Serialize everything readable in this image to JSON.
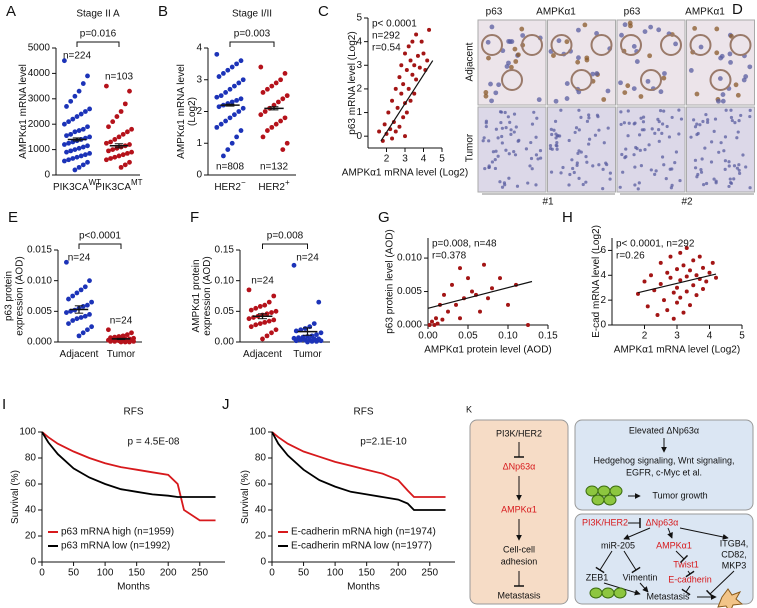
{
  "chart_data": [
    {
      "label": "A",
      "type": "dot",
      "title": "Stage II A",
      "ylabel": [
        "AMPKα1 mRNA level"
      ],
      "ylim": [
        0,
        5000
      ],
      "yticks": [
        0,
        1000,
        2000,
        3000,
        4000,
        5000
      ],
      "annotation": "p=0.016",
      "categories": [
        {
          "text": "PIK3CA",
          "sup": "WT"
        },
        {
          "text": "PIK3CA",
          "sup": "MT"
        }
      ],
      "groups": [
        {
          "n_label": "n=224",
          "color": "#1c33b8",
          "mean": 1400,
          "sem": 60,
          "values": [
            4500,
            3900,
            3600,
            3300,
            3100,
            2900,
            2700,
            2600,
            2500,
            2400,
            2300,
            2200,
            2100,
            2000,
            1900,
            1800,
            1750,
            1700,
            1600,
            1550,
            1500,
            1450,
            1400,
            1350,
            1300,
            1250,
            1200,
            1150,
            1100,
            1050,
            1000,
            950,
            900,
            850,
            800,
            750,
            700,
            650,
            600,
            550,
            500,
            400,
            300,
            200
          ]
        },
        {
          "n_label": "n=103",
          "color": "#b5121b",
          "mean": 1150,
          "sem": 80,
          "values": [
            3500,
            3300,
            2800,
            2500,
            2300,
            2100,
            1900,
            1800,
            1700,
            1600,
            1500,
            1400,
            1300,
            1250,
            1200,
            1150,
            1100,
            1050,
            1000,
            950,
            900,
            850,
            800,
            750,
            700,
            650,
            600,
            500,
            400,
            300
          ]
        }
      ]
    },
    {
      "label": "B",
      "type": "dot",
      "title": "Stage I/II",
      "ylabel": [
        "AMPKα1 mRNA level",
        "(Log2)"
      ],
      "ylim": [
        0,
        4
      ],
      "yticks": [
        0,
        1,
        2,
        3,
        4
      ],
      "annotation": "p=0.003",
      "categories": [
        {
          "text": "HER2",
          "sup": "−"
        },
        {
          "text": "HER2",
          "sup": "+"
        }
      ],
      "groups": [
        {
          "n_label": "n=808",
          "color": "#1c33b8",
          "mean": 2.2,
          "sem": 0.03,
          "values": [
            3.8,
            3.6,
            3.5,
            3.4,
            3.3,
            3.2,
            3.1,
            3.0,
            2.9,
            2.8,
            2.7,
            2.6,
            2.5,
            2.45,
            2.4,
            2.35,
            2.3,
            2.25,
            2.2,
            2.15,
            2.1,
            2.0,
            1.9,
            1.8,
            1.7,
            1.6,
            1.5,
            1.4,
            1.2,
            1.0,
            0.8,
            0.6
          ]
        },
        {
          "n_label": "n=132",
          "color": "#b5121b",
          "mean": 2.1,
          "sem": 0.05,
          "values": [
            3.4,
            3.2,
            3.0,
            2.9,
            2.8,
            2.7,
            2.6,
            2.5,
            2.4,
            2.3,
            2.2,
            2.1,
            2.0,
            1.9,
            1.8,
            1.7,
            1.6,
            1.5,
            1.4,
            1.2,
            1.0,
            0.8
          ]
        }
      ]
    },
    {
      "label": "C",
      "type": "scatter",
      "ylabel": [
        "p63 mRNA level (Log2)"
      ],
      "xlabel": "AMPKα1 mRNA level (Log2)",
      "xlim": [
        1,
        5
      ],
      "xticks": [
        2,
        3,
        4,
        5
      ],
      "ylim": [
        -0.5,
        5
      ],
      "yticks": [
        0,
        1,
        2,
        3,
        4,
        5
      ],
      "color": "#a31515",
      "annotation": [
        "p< 0.0001",
        "n=292",
        "r=0.54"
      ],
      "x": [
        1.6,
        1.8,
        1.9,
        2.0,
        2.1,
        2.2,
        2.3,
        2.3,
        2.4,
        2.5,
        2.5,
        2.6,
        2.7,
        2.7,
        2.8,
        2.8,
        2.9,
        2.9,
        3.0,
        3.0,
        3.0,
        3.1,
        3.1,
        3.2,
        3.2,
        3.3,
        3.3,
        3.4,
        3.4,
        3.5,
        3.5,
        3.6,
        3.6,
        3.7,
        3.8,
        3.9,
        4.0,
        4.1,
        4.2,
        4.3
      ],
      "y": [
        0.2,
        -0.2,
        0.5,
        0.1,
        1.0,
        0.3,
        -0.1,
        1.5,
        0.6,
        2.0,
        0.2,
        1.2,
        2.5,
        0.4,
        1.8,
        3.0,
        0.8,
        2.2,
        3.5,
        1.4,
        0.0,
        2.8,
        1.0,
        3.8,
        2.0,
        3.2,
        1.5,
        4.0,
        2.6,
        3.0,
        1.8,
        4.3,
        2.4,
        3.4,
        2.9,
        4.0,
        3.5,
        2.8,
        3.2,
        4.5
      ],
      "fit": {
        "x": [
          1.7,
          4.5
        ],
        "y": [
          -0.2,
          3.2
        ]
      }
    },
    {
      "label": "E",
      "type": "dot",
      "ylabel": [
        "p63 protein",
        "expression (AOD)"
      ],
      "ylim": [
        0,
        0.015
      ],
      "yticks": [
        {
          "value": 0,
          "label": "0.000"
        },
        {
          "value": 0.005,
          "label": "0.005"
        },
        {
          "value": 0.01,
          "label": "0.010"
        },
        {
          "value": 0.015,
          "label": "0.015"
        }
      ],
      "annotation": "p<0.0001",
      "categories": [
        {
          "text": "Adjacent"
        },
        {
          "text": "Tumor"
        }
      ],
      "groups": [
        {
          "n_label": "n=24",
          "color": "#1c33b8",
          "mean": 0.0053,
          "sem": 0.0006,
          "values": [
            0.013,
            0.01,
            0.009,
            0.0085,
            0.008,
            0.0075,
            0.007,
            0.0065,
            0.006,
            0.0058,
            0.0055,
            0.0052,
            0.005,
            0.0048,
            0.0045,
            0.0042,
            0.004,
            0.0038,
            0.0035,
            0.003,
            0.0025,
            0.002,
            0.0015,
            0.001
          ]
        },
        {
          "n_label": "n=24",
          "color": "#b5121b",
          "mean": 0.0005,
          "sem": 0.0001,
          "values": [
            0.002,
            0.0015,
            0.0012,
            0.001,
            0.0009,
            0.0008,
            0.0007,
            0.0006,
            0.0005,
            0.0005,
            0.0004,
            0.0004,
            0.0003,
            0.0003,
            0.0003,
            0.0002,
            0.0002,
            0.0002,
            0.0001,
            0.0001,
            0.0001,
            0,
            0,
            0
          ]
        }
      ]
    },
    {
      "label": "F",
      "type": "dot",
      "ylabel": [
        "AMPKα1 protein",
        "expression (AOD)"
      ],
      "ylim": [
        0,
        0.15
      ],
      "yticks": [
        {
          "value": 0,
          "label": "0.00"
        },
        {
          "value": 0.05,
          "label": "0.05"
        },
        {
          "value": 0.1,
          "label": "0.10"
        },
        {
          "value": 0.15,
          "label": "0.15"
        }
      ],
      "annotation": "p=0.008",
      "categories": [
        {
          "text": "Adjacent"
        },
        {
          "text": "Tumor"
        }
      ],
      "groups": [
        {
          "n_label": "n=24",
          "color": "#b5121b",
          "mean": 0.042,
          "sem": 0.004,
          "values": [
            0.085,
            0.075,
            0.065,
            0.06,
            0.058,
            0.055,
            0.052,
            0.05,
            0.048,
            0.046,
            0.044,
            0.042,
            0.04,
            0.038,
            0.036,
            0.034,
            0.032,
            0.03,
            0.028,
            0.025,
            0.02,
            0.015,
            0.01,
            0.005
          ]
        },
        {
          "n_label": "n=24",
          "color": "#1c33b8",
          "mean": 0.017,
          "sem": 0.006,
          "values": [
            0.125,
            0.065,
            0.03,
            0.025,
            0.022,
            0.02,
            0.018,
            0.015,
            0.012,
            0.01,
            0.009,
            0.008,
            0.007,
            0.006,
            0.005,
            0.005,
            0.004,
            0.003,
            0.003,
            0.002,
            0.002,
            0.001,
            0.001,
            0
          ]
        }
      ]
    },
    {
      "label": "G",
      "type": "scatter",
      "ylabel": [
        "p63 protein level (AOD)"
      ],
      "xlabel": "AMPKα1 protein level (AOD)",
      "xlim": [
        0,
        0.15
      ],
      "xticks": [
        {
          "value": 0,
          "label": "0.00"
        },
        {
          "value": 0.05,
          "label": "0.05"
        },
        {
          "value": 0.1,
          "label": "0.10"
        },
        {
          "value": 0.15,
          "label": "0.15"
        }
      ],
      "ylim": [
        0,
        0.013
      ],
      "yticks": [
        {
          "value": 0,
          "label": "0.000"
        },
        {
          "value": 0.005,
          "label": "0.005"
        },
        {
          "value": 0.01,
          "label": "0.010"
        }
      ],
      "color": "#a31515",
      "annotation": [
        "p=0.008, n=48",
        "r=0.378"
      ],
      "x": [
        0.002,
        0.005,
        0.008,
        0.01,
        0.012,
        0.015,
        0.018,
        0.02,
        0.025,
        0.03,
        0.035,
        0.04,
        0.04,
        0.045,
        0.05,
        0.055,
        0.06,
        0.065,
        0.07,
        0.075,
        0.08,
        0.09,
        0.1,
        0.11,
        0.125
      ],
      "y": [
        0,
        0.0005,
        0,
        0.001,
        0.0002,
        0.003,
        0.0008,
        0.0045,
        0.002,
        0.006,
        0.003,
        0.0085,
        0.001,
        0.004,
        0.007,
        0.005,
        0.0045,
        0.002,
        0.009,
        0.004,
        0.0055,
        0.007,
        0.003,
        0.006,
        0
      ],
      "fit": {
        "x": [
          0,
          0.13
        ],
        "y": [
          0.0025,
          0.0065
        ]
      }
    },
    {
      "label": "H",
      "type": "scatter",
      "ylabel": [
        "E-cad mRNA level (Log2)"
      ],
      "xlabel": "AMPKα1 mRNA level (Log2)",
      "xlim": [
        1,
        5
      ],
      "xticks": [
        2,
        3,
        4,
        5
      ],
      "ylim": [
        0,
        7
      ],
      "yticks": [
        0,
        2,
        4,
        6
      ],
      "color": "#a31515",
      "annotation": [
        "p< 0.0001, n=292",
        "r=0.26"
      ],
      "x": [
        1.8,
        2.0,
        2.1,
        2.2,
        2.3,
        2.4,
        2.5,
        2.5,
        2.6,
        2.7,
        2.7,
        2.8,
        2.8,
        2.9,
        2.9,
        3.0,
        3.0,
        3.0,
        3.1,
        3.1,
        3.1,
        3.2,
        3.2,
        3.3,
        3.3,
        3.3,
        3.4,
        3.4,
        3.5,
        3.5,
        3.6,
        3.6,
        3.7,
        3.7,
        3.8,
        3.8,
        3.9,
        4.0,
        4.1,
        4.2
      ],
      "y": [
        2.5,
        3.5,
        1.5,
        4.0,
        2.8,
        0.8,
        3.3,
        5.0,
        2.0,
        4.2,
        1.2,
        3.8,
        5.5,
        2.6,
        0.5,
        4.5,
        3.0,
        1.8,
        5.8,
        3.6,
        2.2,
        4.8,
        1.0,
        3.9,
        6.2,
        2.7,
        4.4,
        1.6,
        5.2,
        3.2,
        4.0,
        2.4,
        5.5,
        3.7,
        4.6,
        2.9,
        3.5,
        4.2,
        5.0,
        3.8
      ],
      "fit": {
        "x": [
          1.8,
          4.2
        ],
        "y": [
          2.6,
          4.1
        ]
      }
    },
    {
      "label": "I",
      "type": "line",
      "title": "RFS",
      "ylabel": [
        "Survival (%)"
      ],
      "xlabel": "Months",
      "annotation": "p = 4.5E-08",
      "xlim": [
        0,
        290
      ],
      "xticks": [
        0,
        50,
        100,
        150,
        200,
        250
      ],
      "ylim": [
        0,
        100
      ],
      "yticks": [
        0,
        20,
        40,
        60,
        80,
        100
      ],
      "x": [
        0,
        10,
        25,
        50,
        75,
        100,
        125,
        150,
        175,
        200,
        215,
        225,
        250,
        275
      ],
      "series": [
        {
          "name": "p63 mRNA high (n=1959)",
          "color": "#d7191c",
          "values": [
            100,
            96,
            91,
            85,
            80,
            76,
            73,
            71,
            69,
            67,
            60,
            40,
            32,
            32
          ]
        },
        {
          "name": "p63 mRNA low (n=1992)",
          "color": "#000000",
          "values": [
            100,
            92,
            83,
            72,
            65,
            60,
            56,
            54,
            52,
            51,
            50,
            50,
            50,
            50
          ]
        }
      ]
    },
    {
      "label": "J",
      "type": "line",
      "title": "RFS",
      "ylabel": [
        "Survival (%)"
      ],
      "xlabel": "Months",
      "annotation": "p=2.1E-10",
      "xlim": [
        0,
        290
      ],
      "xticks": [
        0,
        50,
        100,
        150,
        200,
        250
      ],
      "ylim": [
        0,
        100
      ],
      "yticks": [
        0,
        20,
        40,
        60,
        80,
        100
      ],
      "x": [
        0,
        10,
        25,
        50,
        75,
        100,
        125,
        150,
        175,
        200,
        215,
        225,
        250,
        275
      ],
      "series": [
        {
          "name": "E-cadherin mRNA high (n=1974)",
          "color": "#d7191c",
          "values": [
            100,
            96,
            91,
            85,
            81,
            77,
            74,
            71,
            68,
            63,
            55,
            50,
            50,
            50
          ]
        },
        {
          "name": "E-cadherin mRNA low (n=1977)",
          "color": "#000000",
          "values": [
            100,
            91,
            82,
            71,
            63,
            58,
            54,
            52,
            50,
            48,
            45,
            40,
            40,
            40
          ]
        }
      ]
    }
  ],
  "panel_d": {
    "label": "D",
    "columns": [
      "p63",
      "AMPKα1",
      "p63",
      "AMPKα1"
    ],
    "rows": [
      "Adjacent",
      "Tumor"
    ],
    "cases": [
      "#1",
      "#2"
    ]
  },
  "panel_k": {
    "label": "K",
    "left": [
      "PI3K/HER2",
      "ΔNp63α",
      "AMPKα1",
      "Cell-cell",
      "adhesion",
      "Metastasis"
    ],
    "top": [
      "Elevated ΔNp63α",
      "Hedgehog signaling, Wnt signaling,",
      "EGFR, c-Myc et al.",
      "Tumor growth"
    ],
    "bottom": [
      "PI3K/HER2",
      "ΔNp63α",
      "miR-205",
      "AMPKα1",
      "Twist1",
      "ITGB4,",
      "CD82,",
      "MKP3",
      "ZEB1",
      "Vimentin",
      "E-cadherin",
      "Metastasis"
    ]
  }
}
